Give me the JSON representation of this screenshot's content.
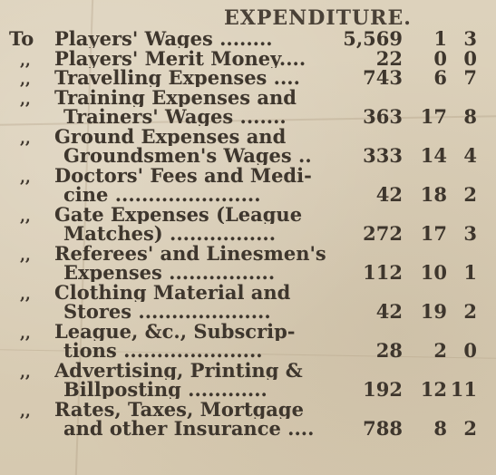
{
  "heading": "EXPENDITURE.",
  "entries": [
    {
      "marker": "To",
      "lines": [
        "Players' Wages ........"
      ],
      "pounds": "5,569",
      "shillings": "1",
      "pence": "3"
    },
    {
      "marker": ",,",
      "lines": [
        "Players' Merit Money...."
      ],
      "pounds": "22",
      "shillings": "0",
      "pence": "0"
    },
    {
      "marker": ",,",
      "lines": [
        "Travelling Expenses ...."
      ],
      "pounds": "743",
      "shillings": "6",
      "pence": "7"
    },
    {
      "marker": ",,",
      "lines": [
        "Training Expenses and",
        "Trainers' Wages ......."
      ],
      "pounds": "363",
      "shillings": "17",
      "pence": "8"
    },
    {
      "marker": ",,",
      "lines": [
        "Ground Expenses and",
        "Groundsmen's Wages .."
      ],
      "pounds": "333",
      "shillings": "14",
      "pence": "4"
    },
    {
      "marker": ",,",
      "lines": [
        "Doctors' Fees and Medi-",
        "cine ......................"
      ],
      "pounds": "42",
      "shillings": "18",
      "pence": "2"
    },
    {
      "marker": ",,",
      "lines": [
        "Gate Expenses (League",
        "Matches) ................"
      ],
      "pounds": "272",
      "shillings": "17",
      "pence": "3"
    },
    {
      "marker": ",,",
      "lines": [
        "Referees' and Linesmen's",
        "Expenses ................"
      ],
      "pounds": "112",
      "shillings": "10",
      "pence": "1"
    },
    {
      "marker": ",,",
      "lines": [
        "Clothing Material and",
        "Stores ...................."
      ],
      "pounds": "42",
      "shillings": "19",
      "pence": "2"
    },
    {
      "marker": ",,",
      "lines": [
        "League, &c., Subscrip-",
        "tions ....................."
      ],
      "pounds": "28",
      "shillings": "2",
      "pence": "0"
    },
    {
      "marker": ",,",
      "lines": [
        "Advertising, Printing &",
        "Billposting ............"
      ],
      "pounds": "192",
      "shillings": "12",
      "pence": "11"
    },
    {
      "marker": ",,",
      "lines": [
        "Rates, Taxes, Mortgage",
        "and other Insurance ...."
      ],
      "pounds": "788",
      "shillings": "8",
      "pence": "2"
    }
  ]
}
